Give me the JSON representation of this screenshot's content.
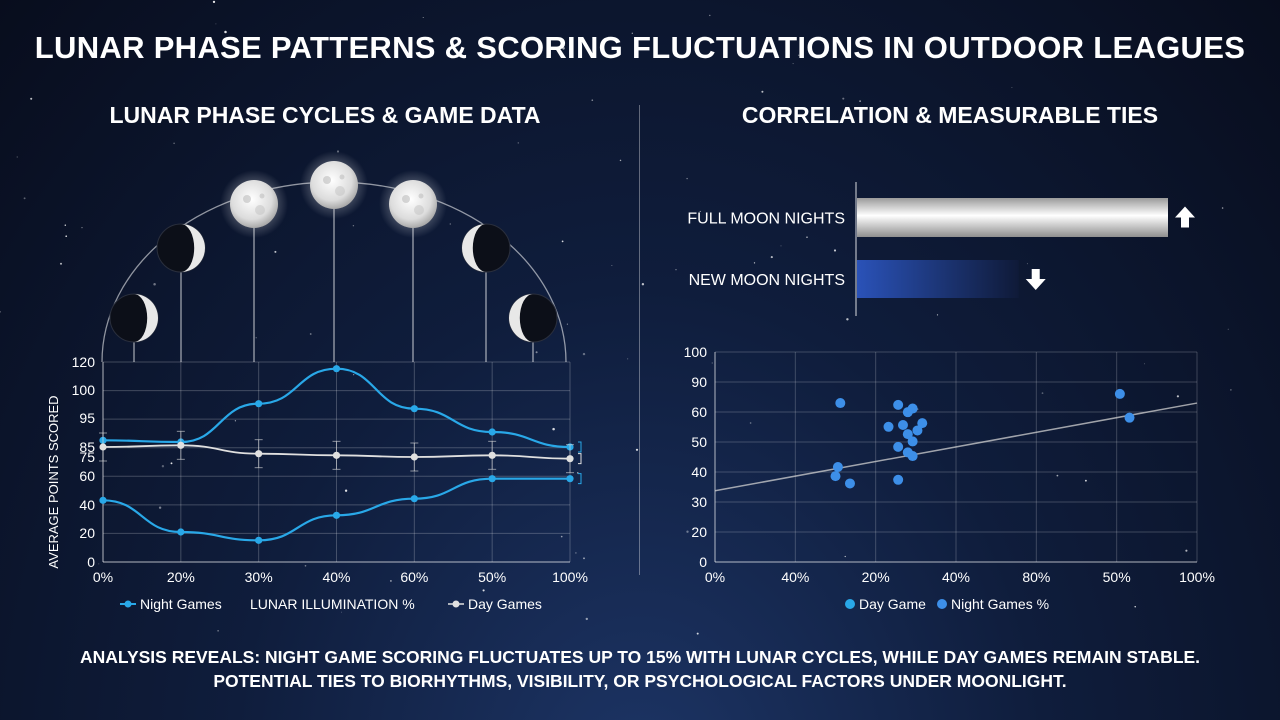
{
  "title": "LUNAR PHASE PATTERNS & SCORING FLUCTUATIONS IN OUTDOOR LEAGUES",
  "left_panel": {
    "title": "LUNAR PHASE CYCLES & GAME DATA"
  },
  "right_panel": {
    "title": "CORRELATION & MEASURABLE TIES"
  },
  "chart_data": [
    {
      "type": "line",
      "ylabel": "AVERAGE POINTS SCORED",
      "xlabel": "LUNAR ILLUMINATION %",
      "categories": [
        "0%",
        "20%",
        "30%",
        "40%",
        "60%",
        "50%",
        "100%"
      ],
      "y_ticks": [
        "0",
        "20",
        "40",
        "60",
        "75",
        "85",
        "95",
        "100",
        "120"
      ],
      "moon_phases": [
        "waning-crescent",
        "crescent",
        "gibbous",
        "full",
        "gibbous",
        "crescent",
        "crescent"
      ],
      "series": [
        {
          "name": "Night Games",
          "color": "#29a8e8",
          "values": [
            73,
            72,
            95,
            116,
            92,
            78,
            69
          ]
        },
        {
          "name": "Night Games",
          "color": "#29a8e8",
          "values": [
            37,
            18,
            13,
            28,
            38,
            50,
            50
          ]
        },
        {
          "name": "Day Games",
          "color": "#e0e0e0",
          "values": [
            69,
            70,
            65,
            64,
            63,
            64,
            62
          ]
        }
      ],
      "legend": [
        "Night Games",
        "LUNAR ILLUMINATION %",
        "Day Games"
      ],
      "grid": true
    },
    {
      "type": "bar",
      "orientation": "horizontal",
      "categories": [
        "FULL MOON NIGHTS",
        "NEW MOON NIGHTS"
      ],
      "values": [
        100,
        52
      ],
      "colors": [
        "#e8e8e8",
        "#2a52b8"
      ],
      "trend_icons": [
        "arrow-up-icon",
        "arrow-down-icon"
      ]
    },
    {
      "type": "scatter",
      "x_ticks": [
        "0%",
        "40%",
        "20%",
        "40%",
        "80%",
        "50%",
        "100%"
      ],
      "y_ticks": [
        "0",
        "20",
        "30",
        "40",
        "50",
        "60",
        "90",
        "100",
        "100"
      ],
      "points": [
        [
          26,
          87
        ],
        [
          25.5,
          52
        ],
        [
          25,
          47
        ],
        [
          28,
          43
        ],
        [
          38,
          86
        ],
        [
          40,
          82
        ],
        [
          41,
          84
        ],
        [
          36,
          74
        ],
        [
          39,
          75
        ],
        [
          40,
          70
        ],
        [
          41,
          66
        ],
        [
          42,
          72
        ],
        [
          43,
          76
        ],
        [
          38,
          63
        ],
        [
          40,
          60
        ],
        [
          41,
          58
        ],
        [
          38,
          45
        ],
        [
          84,
          92
        ],
        [
          86,
          79
        ]
      ],
      "trendline": {
        "from": [
          0,
          39
        ],
        "to": [
          100,
          87
        ]
      },
      "color": "#3d8fe8",
      "legend": [
        "Day Game",
        "Night Games %"
      ],
      "grid": true
    }
  ],
  "footer": {
    "line1": "ANALYSIS REVEALS: NIGHT GAME SCORING FLUCTUATES UP TO 15% WITH LUNAR CYCLES, WHILE DAY GAMES REMAIN STABLE.",
    "line2": "POTENTIAL TIES TO BIORHYTHMS, VISIBILITY, OR PSYCHOLOGICAL FACTORS UNDER MOONLIGHT."
  }
}
